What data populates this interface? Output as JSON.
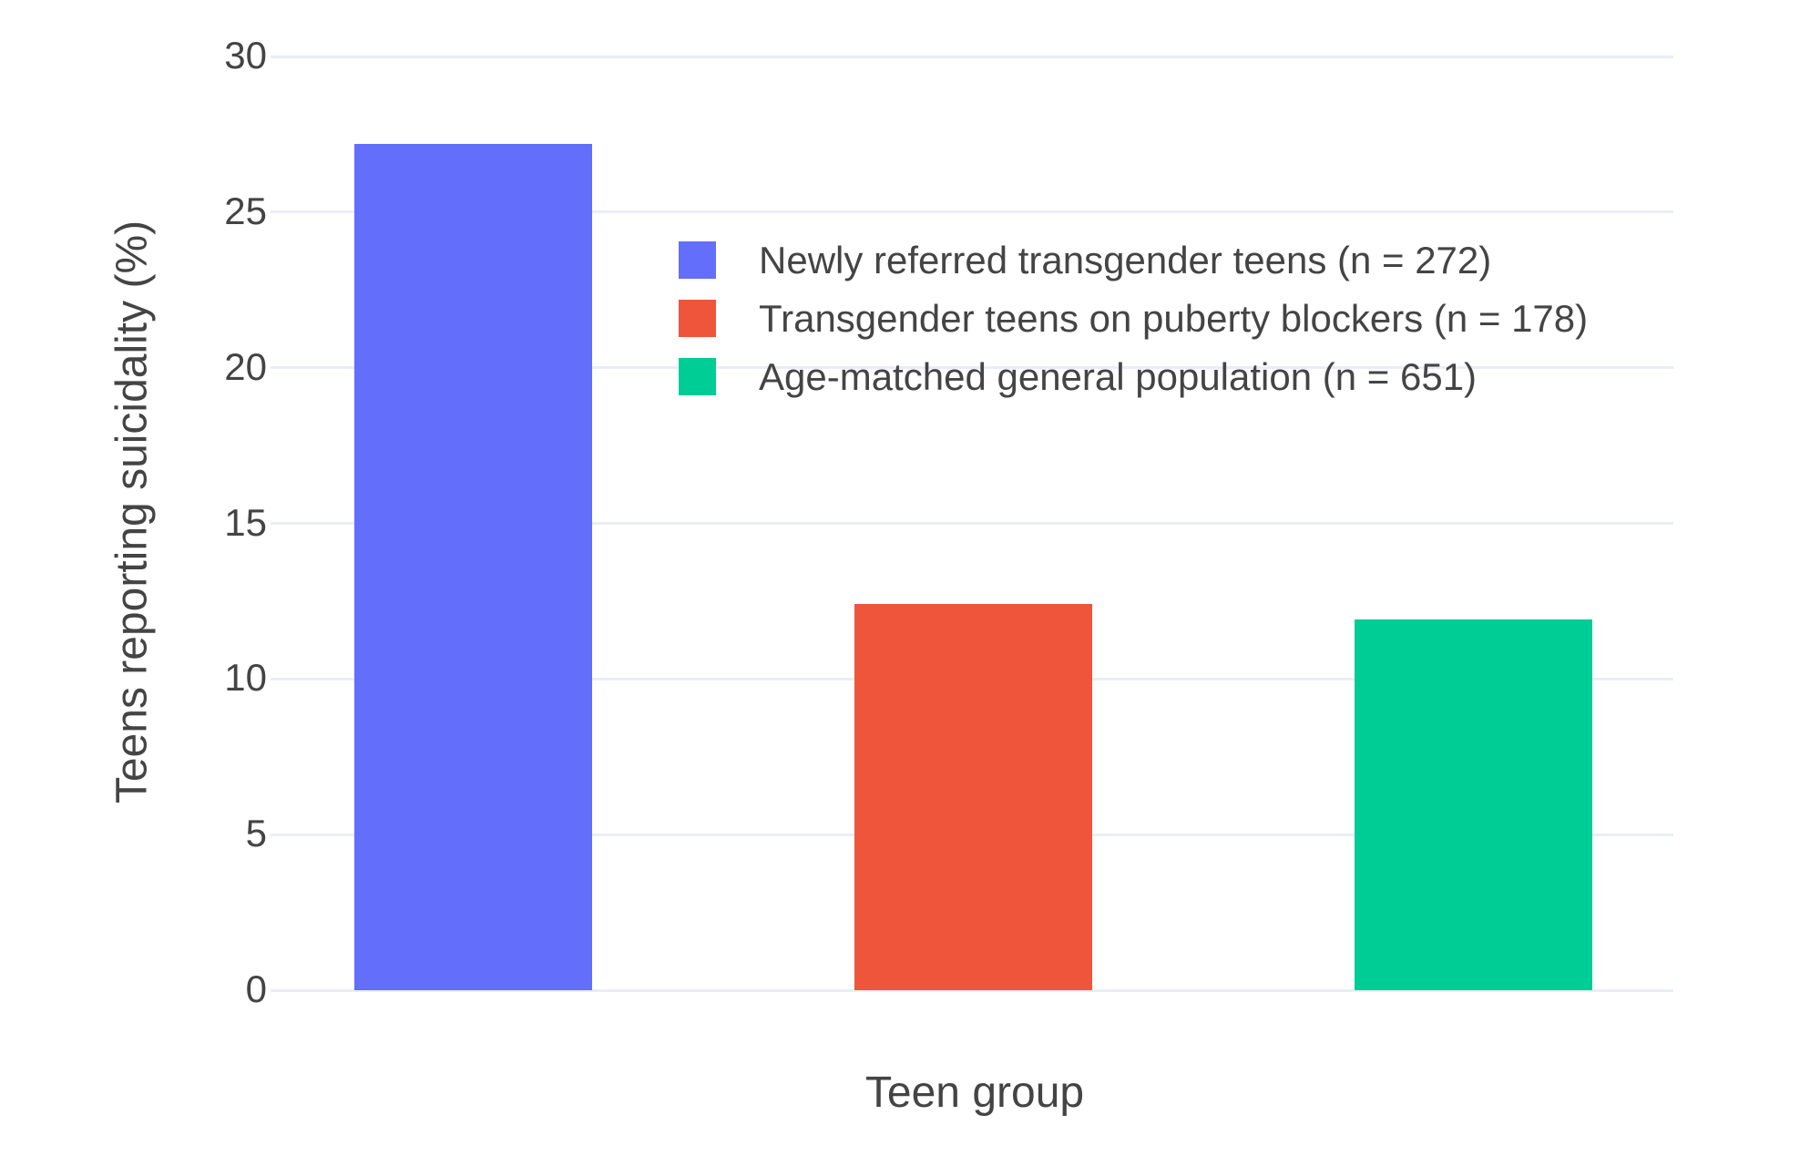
{
  "chart_data": {
    "type": "bar",
    "title": "",
    "xlabel": "Teen group",
    "ylabel": "Teens reporting suicidality (%)",
    "ylim": [
      0,
      30
    ],
    "yticks": [
      0,
      5,
      10,
      15,
      20,
      25,
      30
    ],
    "grid": true,
    "legend_position": "inside-top-center",
    "categories": [
      "Newly referred transgender teens (n = 272)",
      "Transgender teens on puberty blockers (n = 178)",
      "Age-matched general population (n = 651)"
    ],
    "series": [
      {
        "name": "Newly referred transgender teens (n = 272)",
        "value": 27.2,
        "color": "#636EFA"
      },
      {
        "name": "Transgender teens on puberty blockers (n = 178)",
        "value": 12.4,
        "color": "#EF553B"
      },
      {
        "name": "Age-matched general population (n = 651)",
        "value": 11.9,
        "color": "#00CC96"
      }
    ]
  },
  "colors": {
    "background": "#FFFFFF",
    "grid": "#E9EDF4",
    "text": "#444444"
  }
}
